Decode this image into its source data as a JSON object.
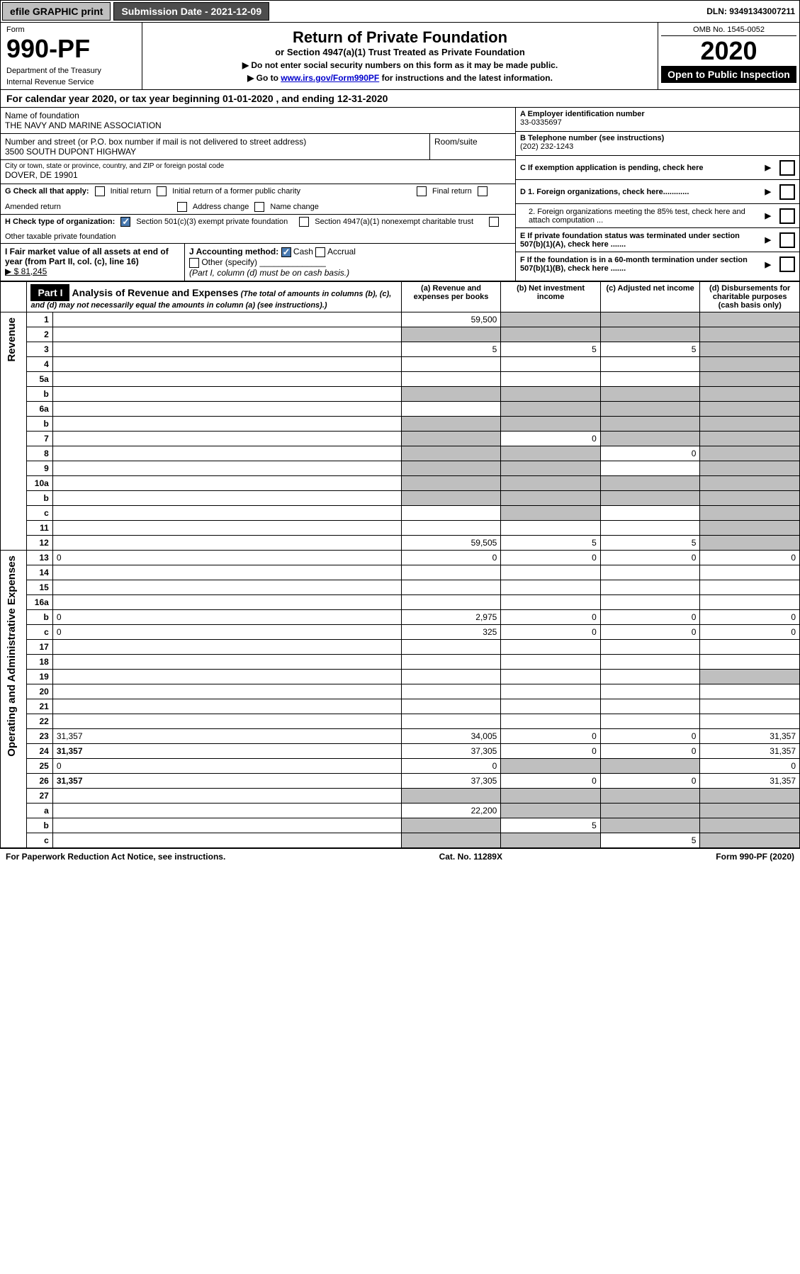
{
  "topbar": {
    "efile": "efile GRAPHIC print",
    "submission_label": "Submission Date - 2021-12-09",
    "dln_label": "DLN: 93491343007211"
  },
  "header": {
    "form": "Form",
    "form_num": "990-PF",
    "dept1": "Department of the Treasury",
    "dept2": "Internal Revenue Service",
    "title": "Return of Private Foundation",
    "subtitle": "or Section 4947(a)(1) Trust Treated as Private Foundation",
    "instr1": "▶ Do not enter social security numbers on this form as it may be made public.",
    "instr2_pre": "▶ Go to ",
    "instr2_link": "www.irs.gov/Form990PF",
    "instr2_post": " for instructions and the latest information.",
    "omb": "OMB No. 1545-0052",
    "year": "2020",
    "open_pub": "Open to Public Inspection"
  },
  "calyear": "For calendar year 2020, or tax year beginning 01-01-2020               , and ending 12-31-2020",
  "name_lbl": "Name of foundation",
  "name": "THE NAVY AND MARINE ASSOCIATION",
  "a_lbl": "A Employer identification number",
  "a_val": "33-0335697",
  "addr_lbl": "Number and street (or P.O. box number if mail is not delivered to street address)",
  "addr": "3500 SOUTH DUPONT HIGHWAY",
  "room_lbl": "Room/suite",
  "b_lbl": "B Telephone number (see instructions)",
  "b_val": "(202) 232-1243",
  "city_lbl": "City or town, state or province, country, and ZIP or foreign postal code",
  "city": "DOVER, DE  19901",
  "c_lbl": "C If exemption application is pending, check here",
  "g_lbl": "G Check all that apply:",
  "g_opts": {
    "initial": "Initial return",
    "initial_former": "Initial return of a former public charity",
    "final": "Final return",
    "amended": "Amended return",
    "addr_change": "Address change",
    "name_change": "Name change"
  },
  "d1": "D 1. Foreign organizations, check here............",
  "d2": "2. Foreign organizations meeting the 85% test, check here and attach computation ...",
  "h_lbl": "H Check type of organization:",
  "h_501c3": "Section 501(c)(3) exempt private foundation",
  "h_4947": "Section 4947(a)(1) nonexempt charitable trust",
  "h_other": "Other taxable private foundation",
  "e_lbl": "E If private foundation status was terminated under section 507(b)(1)(A), check here .......",
  "i_lbl": "I Fair market value of all assets at end of year (from Part II, col. (c), line 16)",
  "i_val": "▶ $ 81,245",
  "j_lbl": "J Accounting method:",
  "j_cash": "Cash",
  "j_accrual": "Accrual",
  "j_other": "Other (specify)",
  "j_note": "(Part I, column (d) must be on cash basis.)",
  "f_lbl": "F If the foundation is in a 60-month termination under section 507(b)(1)(B), check here .......",
  "part1": {
    "num": "Part I",
    "title": "Analysis of Revenue and Expenses",
    "desc": "(The total of amounts in columns (b), (c), and (d) may not necessarily equal the amounts in column (a) (see instructions).)",
    "col_a": "(a) Revenue and expenses per books",
    "col_b": "(b) Net investment income",
    "col_c": "(c) Adjusted net income",
    "col_d": "(d) Disbursements for charitable purposes (cash basis only)"
  },
  "side_rev": "Revenue",
  "side_exp": "Operating and Administrative Expenses",
  "rows": [
    {
      "n": "1",
      "d": "",
      "a": "59,500",
      "b": "",
      "c": "",
      "grey": [
        "b",
        "c",
        "d"
      ]
    },
    {
      "n": "2",
      "d": "",
      "a": "",
      "b": "",
      "c": "",
      "grey": [
        "a",
        "b",
        "c",
        "d"
      ]
    },
    {
      "n": "3",
      "d": "",
      "a": "5",
      "b": "5",
      "c": "5",
      "grey": [
        "d"
      ]
    },
    {
      "n": "4",
      "d": "",
      "a": "",
      "b": "",
      "c": "",
      "grey": [
        "d"
      ]
    },
    {
      "n": "5a",
      "d": "",
      "a": "",
      "b": "",
      "c": "",
      "grey": [
        "d"
      ]
    },
    {
      "n": "b",
      "d": "",
      "a": "",
      "b": "",
      "c": "",
      "grey": [
        "a",
        "b",
        "c",
        "d"
      ]
    },
    {
      "n": "6a",
      "d": "",
      "a": "",
      "b": "",
      "c": "",
      "grey": [
        "b",
        "c",
        "d"
      ]
    },
    {
      "n": "b",
      "d": "",
      "a": "",
      "b": "",
      "c": "",
      "grey": [
        "a",
        "b",
        "c",
        "d"
      ]
    },
    {
      "n": "7",
      "d": "",
      "a": "",
      "b": "0",
      "c": "",
      "grey": [
        "a",
        "c",
        "d"
      ]
    },
    {
      "n": "8",
      "d": "",
      "a": "",
      "b": "",
      "c": "0",
      "grey": [
        "a",
        "b",
        "d"
      ]
    },
    {
      "n": "9",
      "d": "",
      "a": "",
      "b": "",
      "c": "",
      "grey": [
        "a",
        "b",
        "d"
      ]
    },
    {
      "n": "10a",
      "d": "",
      "a": "",
      "b": "",
      "c": "",
      "grey": [
        "a",
        "b",
        "c",
        "d"
      ]
    },
    {
      "n": "b",
      "d": "",
      "a": "",
      "b": "",
      "c": "",
      "grey": [
        "a",
        "b",
        "c",
        "d"
      ]
    },
    {
      "n": "c",
      "d": "",
      "a": "",
      "b": "",
      "c": "",
      "grey": [
        "b",
        "d"
      ]
    },
    {
      "n": "11",
      "d": "",
      "a": "",
      "b": "",
      "c": "",
      "grey": [
        "d"
      ]
    },
    {
      "n": "12",
      "d": "",
      "a": "59,505",
      "b": "5",
      "c": "5",
      "grey": [
        "d"
      ],
      "bold": true
    },
    {
      "n": "13",
      "d": "0",
      "a": "0",
      "b": "0",
      "c": "0"
    },
    {
      "n": "14",
      "d": "",
      "a": "",
      "b": "",
      "c": ""
    },
    {
      "n": "15",
      "d": "",
      "a": "",
      "b": "",
      "c": ""
    },
    {
      "n": "16a",
      "d": "",
      "a": "",
      "b": "",
      "c": ""
    },
    {
      "n": "b",
      "d": "0",
      "a": "2,975",
      "b": "0",
      "c": "0"
    },
    {
      "n": "c",
      "d": "0",
      "a": "325",
      "b": "0",
      "c": "0"
    },
    {
      "n": "17",
      "d": "",
      "a": "",
      "b": "",
      "c": ""
    },
    {
      "n": "18",
      "d": "",
      "a": "",
      "b": "",
      "c": ""
    },
    {
      "n": "19",
      "d": "",
      "a": "",
      "b": "",
      "c": "",
      "grey": [
        "d"
      ]
    },
    {
      "n": "20",
      "d": "",
      "a": "",
      "b": "",
      "c": ""
    },
    {
      "n": "21",
      "d": "",
      "a": "",
      "b": "",
      "c": ""
    },
    {
      "n": "22",
      "d": "",
      "a": "",
      "b": "",
      "c": ""
    },
    {
      "n": "23",
      "d": "31,357",
      "a": "34,005",
      "b": "0",
      "c": "0"
    },
    {
      "n": "24",
      "d": "31,357",
      "a": "37,305",
      "b": "0",
      "c": "0",
      "bold": true
    },
    {
      "n": "25",
      "d": "0",
      "a": "0",
      "b": "",
      "c": "",
      "grey": [
        "b",
        "c"
      ]
    },
    {
      "n": "26",
      "d": "31,357",
      "a": "37,305",
      "b": "0",
      "c": "0",
      "bold": true
    },
    {
      "n": "27",
      "d": "",
      "a": "",
      "b": "",
      "c": "",
      "grey": [
        "a",
        "b",
        "c",
        "d"
      ]
    },
    {
      "n": "a",
      "d": "",
      "a": "22,200",
      "b": "",
      "c": "",
      "grey": [
        "b",
        "c",
        "d"
      ],
      "bold": true
    },
    {
      "n": "b",
      "d": "",
      "a": "",
      "b": "5",
      "c": "",
      "grey": [
        "a",
        "c",
        "d"
      ],
      "bold": true
    },
    {
      "n": "c",
      "d": "",
      "a": "",
      "b": "",
      "c": "5",
      "grey": [
        "a",
        "b",
        "d"
      ],
      "bold": true
    }
  ],
  "footer": {
    "left": "For Paperwork Reduction Act Notice, see instructions.",
    "mid": "Cat. No. 11289X",
    "right": "Form 990-PF (2020)"
  }
}
